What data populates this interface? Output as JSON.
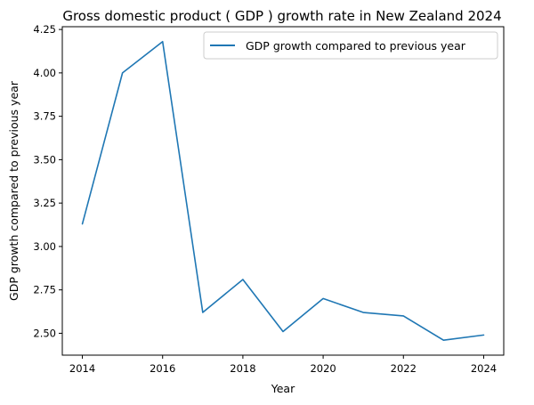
{
  "chart_data": {
    "type": "line",
    "title": "Gross domestic product ( GDP ) growth rate in New Zealand 2024",
    "xlabel": "Year",
    "ylabel": "GDP growth compared to previous year",
    "x": [
      2014,
      2015,
      2016,
      2017,
      2018,
      2019,
      2020,
      2021,
      2022,
      2023,
      2024
    ],
    "series": [
      {
        "name": "GDP growth compared to previous year",
        "color": "#1f77b4",
        "values": [
          3.13,
          4.0,
          4.18,
          2.62,
          2.81,
          2.51,
          2.7,
          2.62,
          2.6,
          2.46,
          2.49
        ]
      }
    ],
    "xlim": [
      2013.5,
      2024.5
    ],
    "ylim": [
      2.374,
      4.266
    ],
    "xticks": [
      2014,
      2016,
      2018,
      2020,
      2022,
      2024
    ],
    "xtick_labels": [
      "2014",
      "2016",
      "2018",
      "2020",
      "2022",
      "2024"
    ],
    "yticks": [
      2.5,
      2.75,
      3.0,
      3.25,
      3.5,
      3.75,
      4.0,
      4.25
    ],
    "ytick_labels": [
      "2.50",
      "2.75",
      "3.00",
      "3.25",
      "3.50",
      "3.75",
      "4.00",
      "4.25"
    ],
    "grid": false,
    "legend_position": "top-right"
  }
}
